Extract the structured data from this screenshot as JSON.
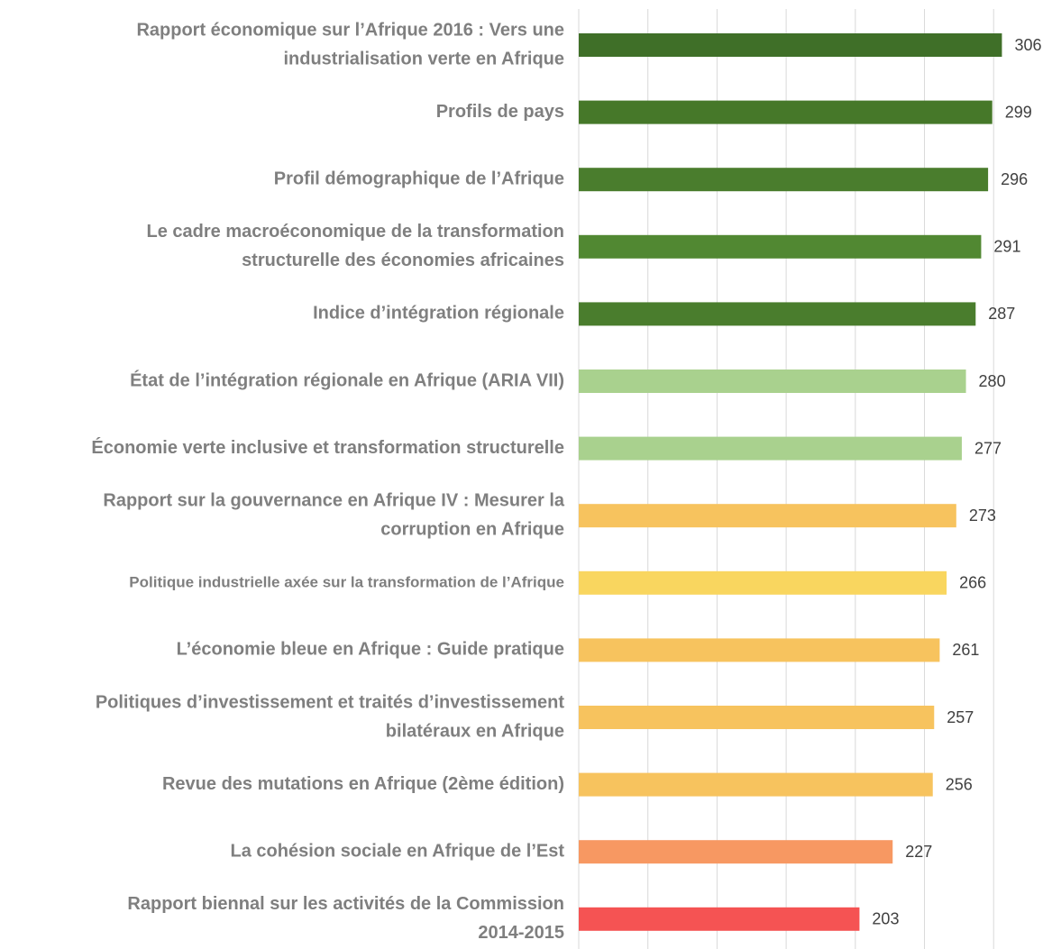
{
  "chart_data": {
    "type": "barh",
    "categories": [
      [
        "Rapport économique sur l’Afrique 2016 : Vers une",
        "industrialisation verte en Afrique"
      ],
      [
        "Profils de pays"
      ],
      [
        "Profil démographique de l’Afrique"
      ],
      [
        "Le cadre macroéconomique de la transformation",
        "structurelle des économies africaines"
      ],
      [
        "Indice d’intégration régionale"
      ],
      [
        "État de l’intégration régionale en Afrique (ARIA VII)"
      ],
      [
        "Économie verte inclusive et transformation structurelle"
      ],
      [
        "Rapport sur la gouvernance en Afrique IV : Mesurer la",
        "corruption en Afrique"
      ],
      [
        "Politique industrielle axée sur la transformation de l’Afrique"
      ],
      [
        "L’économie bleue en Afrique : Guide pratique"
      ],
      [
        "Politiques d’investissement et traités d’investissement",
        "bilatéraux en Afrique"
      ],
      [
        "Revue des mutations en Afrique (2ème édition)"
      ],
      [
        "La cohésion sociale en Afrique de l’Est"
      ],
      [
        "Rapport biennal sur les activités de la Commission",
        "2014-2015"
      ]
    ],
    "values": [
      306,
      299,
      296,
      291,
      287,
      280,
      277,
      273,
      266,
      261,
      257,
      256,
      227,
      203
    ],
    "colors": [
      "#3f6f28",
      "#467829",
      "#4a7d2d",
      "#518832",
      "#4a7d2d",
      "#a9d18e",
      "#a9d18e",
      "#f7c35e",
      "#f9d65f",
      "#f7c35e",
      "#f7c35e",
      "#f7c35e",
      "#f79862",
      "#f55353"
    ],
    "xlim": [
      0,
      340
    ],
    "xticks": [
      0,
      50,
      100,
      150,
      200,
      250,
      300
    ],
    "grid": true
  }
}
